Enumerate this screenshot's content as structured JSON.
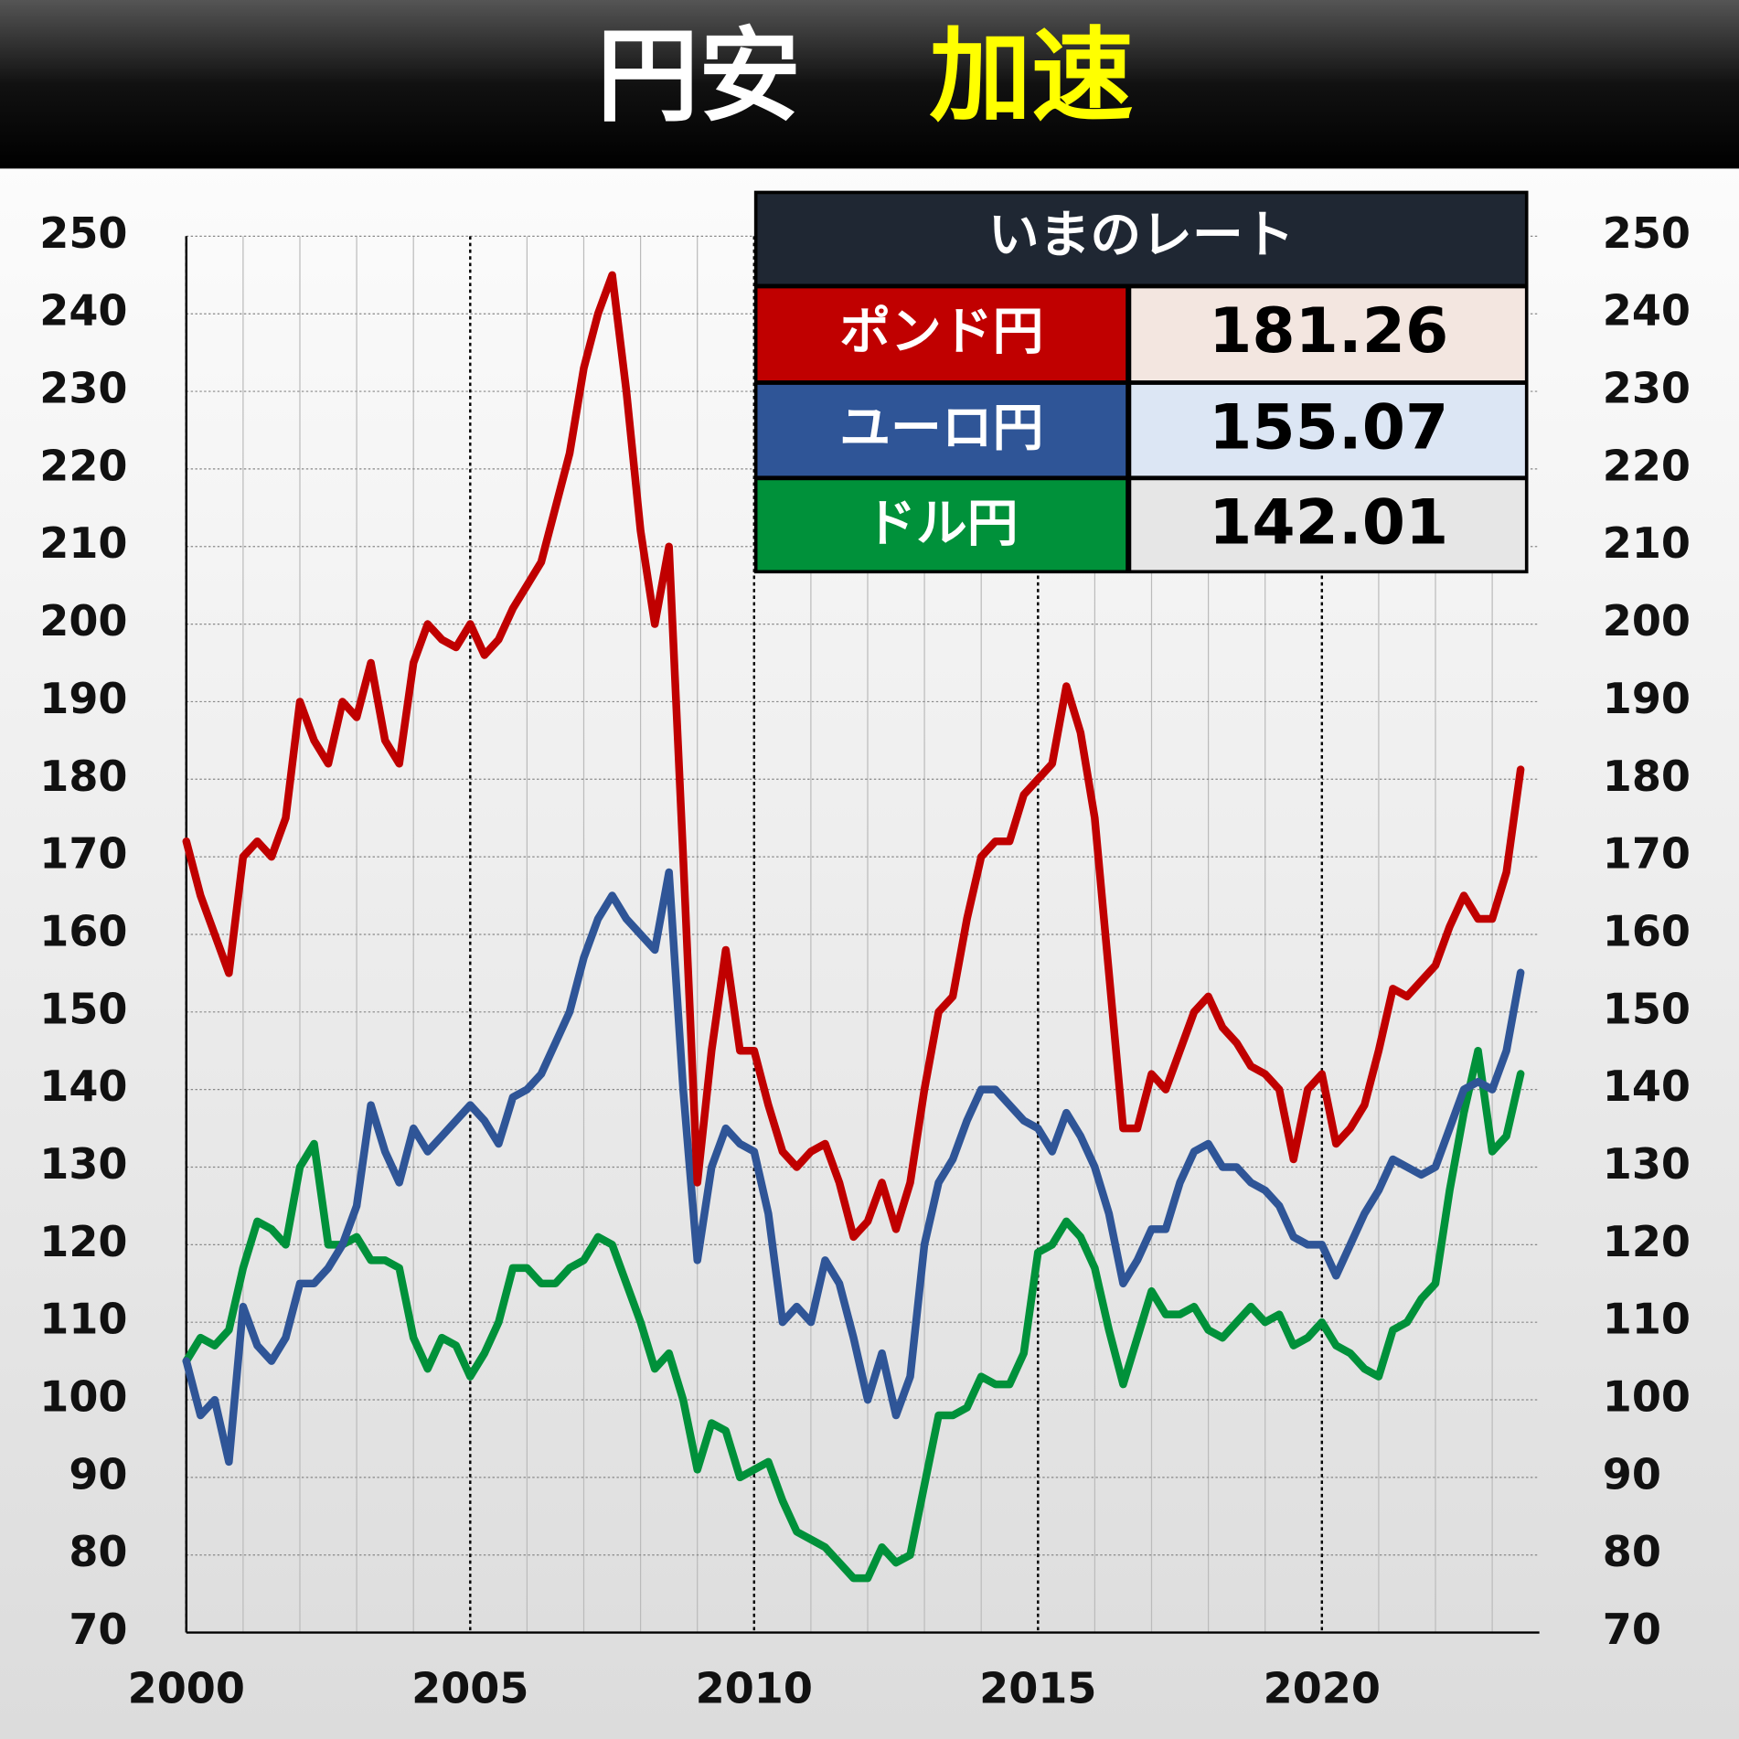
{
  "header": {
    "title_main": "円安",
    "title_accent": "加速"
  },
  "rate_table": {
    "title": "いまのレート",
    "rows": [
      {
        "label": "ポンド円",
        "value": 181.26
      },
      {
        "label": "ユーロ円",
        "value": 155.07
      },
      {
        "label": "ドル円",
        "value": 142.01
      }
    ]
  },
  "chart_data": {
    "type": "line",
    "x": [
      2000,
      2000.25,
      2000.5,
      2000.75,
      2001,
      2001.25,
      2001.5,
      2001.75,
      2002,
      2002.25,
      2002.5,
      2002.75,
      2003,
      2003.25,
      2003.5,
      2003.75,
      2004,
      2004.25,
      2004.5,
      2004.75,
      2005,
      2005.25,
      2005.5,
      2005.75,
      2006,
      2006.25,
      2006.5,
      2006.75,
      2007,
      2007.25,
      2007.5,
      2007.75,
      2008,
      2008.25,
      2008.5,
      2008.75,
      2009,
      2009.25,
      2009.5,
      2009.75,
      2010,
      2010.25,
      2010.5,
      2010.75,
      2011,
      2011.25,
      2011.5,
      2011.75,
      2012,
      2012.25,
      2012.5,
      2012.75,
      2013,
      2013.25,
      2013.5,
      2013.75,
      2014,
      2014.25,
      2014.5,
      2014.75,
      2015,
      2015.25,
      2015.5,
      2015.75,
      2016,
      2016.25,
      2016.5,
      2016.75,
      2017,
      2017.25,
      2017.5,
      2017.75,
      2018,
      2018.25,
      2018.5,
      2018.75,
      2019,
      2019.25,
      2019.5,
      2019.75,
      2020,
      2020.25,
      2020.5,
      2020.75,
      2021,
      2021.25,
      2021.5,
      2021.75,
      2022,
      2022.25,
      2022.5,
      2022.75,
      2023,
      2023.25,
      2023.5
    ],
    "series": [
      {
        "name": "ポンド円",
        "color": "#c00000",
        "values": [
          172,
          165,
          160,
          155,
          170,
          172,
          170,
          175,
          190,
          185,
          182,
          190,
          188,
          195,
          185,
          182,
          195,
          200,
          198,
          197,
          200,
          196,
          198,
          202,
          205,
          208,
          215,
          222,
          233,
          240,
          245,
          230,
          212,
          200,
          210,
          170,
          128,
          145,
          158,
          145,
          145,
          138,
          132,
          130,
          132,
          133,
          128,
          121,
          123,
          128,
          122,
          128,
          140,
          150,
          152,
          162,
          170,
          172,
          172,
          178,
          180,
          182,
          192,
          186,
          175,
          155,
          135,
          135,
          142,
          140,
          145,
          150,
          152,
          148,
          146,
          143,
          142,
          140,
          131,
          140,
          142,
          133,
          135,
          138,
          145,
          153,
          152,
          154,
          156,
          161,
          165,
          162,
          162,
          168,
          181.26
        ]
      },
      {
        "name": "ユーロ円",
        "color": "#2f5597",
        "values": [
          105,
          98,
          100,
          92,
          112,
          107,
          105,
          108,
          115,
          115,
          117,
          120,
          125,
          138,
          132,
          128,
          135,
          132,
          134,
          136,
          138,
          136,
          133,
          139,
          140,
          142,
          146,
          150,
          157,
          162,
          165,
          162,
          160,
          158,
          168,
          140,
          118,
          130,
          135,
          133,
          132,
          124,
          110,
          112,
          110,
          118,
          115,
          108,
          100,
          106,
          98,
          103,
          120,
          128,
          131,
          136,
          140,
          140,
          138,
          136,
          135,
          132,
          137,
          134,
          130,
          124,
          115,
          118,
          122,
          122,
          128,
          132,
          133,
          130,
          130,
          128,
          127,
          125,
          121,
          120,
          120,
          116,
          120,
          124,
          127,
          131,
          130,
          129,
          130,
          135,
          140,
          141,
          140,
          145,
          155.07
        ]
      },
      {
        "name": "ドル円",
        "color": "#00913a",
        "values": [
          105,
          108,
          107,
          109,
          117,
          123,
          122,
          120,
          130,
          133,
          120,
          120,
          121,
          118,
          118,
          117,
          108,
          104,
          108,
          107,
          103,
          106,
          110,
          117,
          117,
          115,
          115,
          117,
          118,
          121,
          120,
          115,
          110,
          104,
          106,
          100,
          91,
          97,
          96,
          90,
          91,
          92,
          87,
          83,
          82,
          81,
          79,
          77,
          77,
          81,
          79,
          80,
          89,
          98,
          98,
          99,
          103,
          102,
          102,
          106,
          119,
          120,
          123,
          121,
          117,
          109,
          102,
          108,
          114,
          111,
          111,
          112,
          109,
          108,
          110,
          112,
          110,
          111,
          107,
          108,
          110,
          107,
          106,
          104,
          103,
          109,
          110,
          113,
          115,
          127,
          137,
          145,
          132,
          134,
          142.01
        ]
      }
    ],
    "xlim": [
      2000,
      2023.83
    ],
    "xticks": [
      2000,
      2005,
      2010,
      2015,
      2020
    ],
    "minor_xticks": [
      2001,
      2002,
      2003,
      2004,
      2006,
      2007,
      2008,
      2009,
      2011,
      2012,
      2013,
      2014,
      2016,
      2017,
      2018,
      2019,
      2021,
      2022,
      2023
    ],
    "ylim": [
      70,
      250
    ],
    "yticks": [
      70,
      80,
      90,
      100,
      110,
      120,
      130,
      140,
      150,
      160,
      170,
      180,
      190,
      200,
      210,
      220,
      230,
      240,
      250
    ],
    "grid": true
  }
}
